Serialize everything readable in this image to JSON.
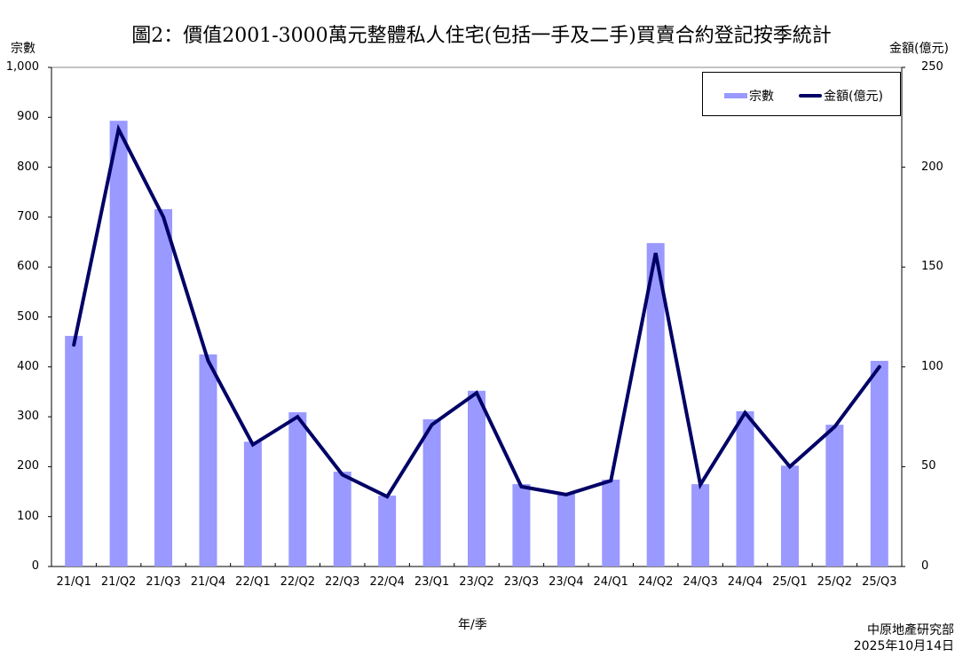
{
  "header": {
    "title": "圖2：價值2001-3000萬元整體私人住宅(包括一手及二手)買賣合約登記按季統計"
  },
  "axes": {
    "left_unit": "宗數",
    "right_unit": "金額(億元)",
    "x_label": "年/季",
    "left_ticks": [
      "0",
      "100",
      "200",
      "300",
      "400",
      "500",
      "600",
      "700",
      "800",
      "900",
      "1,000"
    ],
    "right_ticks": [
      "0",
      "50",
      "100",
      "150",
      "200",
      "250"
    ]
  },
  "legend": {
    "bar_label": "宗數",
    "line_label": "金額(億元)"
  },
  "source": {
    "org": "中原地產研究部",
    "date": "2025年10月14日"
  },
  "colors": {
    "bar": "#9999ff",
    "line": "#000066"
  },
  "chart_data": {
    "type": "bar",
    "title": "圖2：價值2001-3000萬元整體私人住宅(包括一手及二手)買賣合約登記按季統計",
    "xlabel": "年/季",
    "ylabel": "宗數",
    "y2label": "金額(億元)",
    "ylim": [
      0,
      1000
    ],
    "y2lim": [
      0,
      250
    ],
    "grid": false,
    "legend_position": "top-right",
    "categories": [
      "21/Q1",
      "21/Q2",
      "21/Q3",
      "21/Q4",
      "22/Q1",
      "22/Q2",
      "22/Q3",
      "22/Q4",
      "23/Q1",
      "23/Q2",
      "23/Q3",
      "23/Q4",
      "24/Q1",
      "24/Q2",
      "24/Q3",
      "24/Q4",
      "25/Q1",
      "25/Q2",
      "25/Q3"
    ],
    "series": [
      {
        "name": "宗數",
        "type": "bar",
        "axis": "left",
        "values": [
          462,
          893,
          716,
          425,
          250,
          309,
          190,
          142,
          295,
          352,
          165,
          146,
          174,
          648,
          165,
          311,
          202,
          284,
          412
        ]
      },
      {
        "name": "金額(億元)",
        "type": "line",
        "axis": "right",
        "values": [
          111,
          219,
          175,
          103,
          61,
          75,
          46,
          35,
          71,
          87,
          40,
          36,
          43,
          157,
          41,
          77,
          50,
          70,
          100
        ]
      }
    ]
  }
}
